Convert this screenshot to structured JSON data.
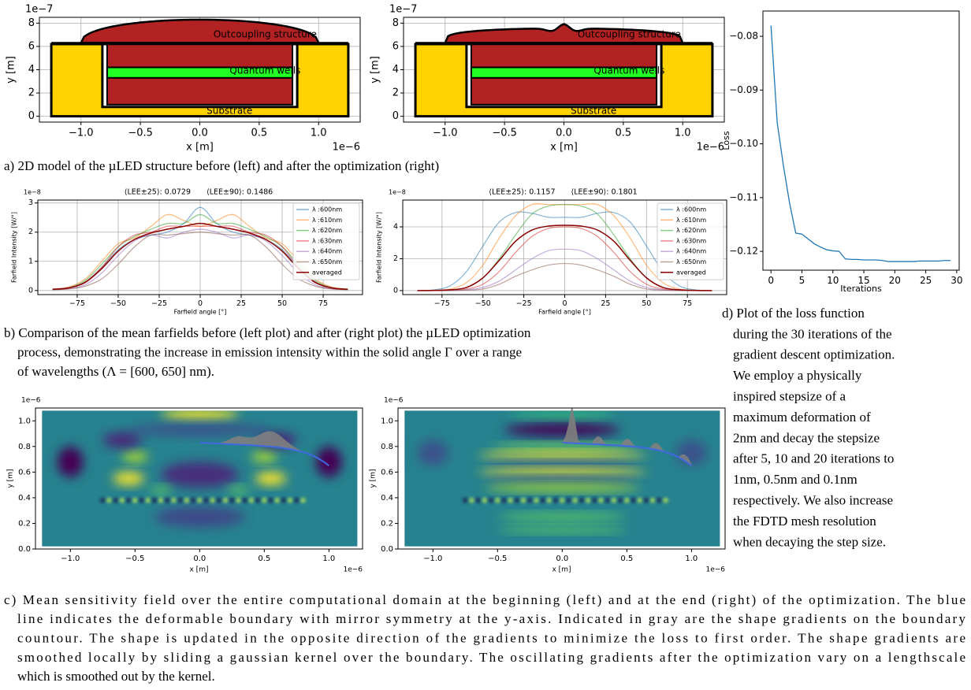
{
  "chart_data": [
    {
      "type": "structure",
      "x_label": "x [m]",
      "y_label": "y [m]",
      "x_offset": "1e−6",
      "y_offset": "1e−7",
      "xlim": [
        -1.35,
        1.35
      ],
      "ylim": [
        -0.5,
        8.5
      ],
      "xticks": [
        {
          "value": -1.0,
          "label": "−1.0"
        },
        {
          "value": -0.5,
          "label": "−0.5"
        },
        {
          "value": 0.0,
          "label": "0.0"
        },
        {
          "value": 0.5,
          "label": "0.5"
        },
        {
          "value": 1.0,
          "label": "1.0"
        }
      ],
      "yticks": [
        0,
        2,
        4,
        6,
        8
      ],
      "grid": true,
      "annotations": [
        "Outcoupling structure",
        "Quantum wells",
        "Substrate"
      ]
    },
    {
      "type": "structure",
      "x_label": "x [m]",
      "y_label": "y [m]",
      "x_offset": "1e−6",
      "y_offset": "1e−7",
      "xlim": [
        -1.35,
        1.35
      ],
      "ylim": [
        -0.5,
        8.5
      ],
      "xticks": [
        {
          "value": -1.0,
          "label": "−1.0"
        },
        {
          "value": -0.5,
          "label": "−0.5"
        },
        {
          "value": 0.0,
          "label": "0.0"
        },
        {
          "value": 0.5,
          "label": "0.5"
        },
        {
          "value": 1.0,
          "label": "1.0"
        }
      ],
      "yticks": [
        0,
        2,
        4,
        6,
        8
      ],
      "grid": true,
      "annotations": [
        "Outcoupling structure",
        "Quantum wells",
        "Substrate"
      ]
    },
    {
      "type": "line",
      "title_left": "⟨LEE±25⟩: 0.0729",
      "title_right": "⟨LEE±90⟩: 0.1486",
      "x_label": "Farfield angle [°]",
      "y_label": "Farfield Intensity [W/°]",
      "y_offset": "1e−8",
      "xlim": [
        -99,
        99
      ],
      "ylim": [
        -0.14,
        3.1
      ],
      "xticks": [
        {
          "value": -75,
          "label": "−75"
        },
        {
          "value": -50,
          "label": "−50"
        },
        {
          "value": -25,
          "label": "−25"
        },
        0,
        25,
        50,
        75
      ],
      "yticks": [
        0,
        1,
        2,
        3
      ],
      "grid": true,
      "legend": "upper right",
      "x": [
        -90,
        -80,
        -70,
        -60,
        -50,
        -40,
        -30,
        -20,
        -10,
        0,
        10,
        20,
        30,
        40,
        50,
        60,
        70,
        80,
        90
      ],
      "series": [
        {
          "name": "λ :600nm",
          "color": "#1f77b4",
          "values": [
            0.05,
            0.1,
            0.3,
            0.8,
            1.4,
            1.75,
            1.9,
            2.0,
            2.3,
            2.85,
            2.3,
            2.0,
            1.9,
            1.75,
            1.4,
            0.8,
            0.3,
            0.1,
            0.05
          ]
        },
        {
          "name": "λ :610nm",
          "color": "#ff7f0e",
          "values": [
            0.05,
            0.12,
            0.4,
            1.0,
            1.6,
            1.8,
            2.2,
            2.6,
            2.4,
            2.2,
            2.4,
            2.6,
            2.2,
            1.8,
            1.6,
            1.0,
            0.4,
            0.12,
            0.05
          ]
        },
        {
          "name": "λ :620nm",
          "color": "#2ca02c",
          "values": [
            0.05,
            0.1,
            0.35,
            0.9,
            1.5,
            1.85,
            2.1,
            2.3,
            2.3,
            2.6,
            2.3,
            2.3,
            2.1,
            1.85,
            1.5,
            0.9,
            0.35,
            0.1,
            0.05
          ]
        },
        {
          "name": "λ :630nm",
          "color": "#d62728",
          "values": [
            0.04,
            0.1,
            0.3,
            0.8,
            1.5,
            1.9,
            2.0,
            2.2,
            2.2,
            2.2,
            2.2,
            2.2,
            2.0,
            1.9,
            1.5,
            0.8,
            0.3,
            0.1,
            0.04
          ]
        },
        {
          "name": "λ :640nm",
          "color": "#9467bd",
          "values": [
            0.03,
            0.06,
            0.2,
            0.6,
            1.2,
            1.7,
            1.9,
            1.8,
            2.0,
            2.1,
            2.0,
            1.8,
            1.9,
            1.7,
            1.2,
            0.6,
            0.2,
            0.06,
            0.03
          ]
        },
        {
          "name": "λ :650nm",
          "color": "#8c564b",
          "values": [
            0.03,
            0.05,
            0.15,
            0.4,
            0.9,
            1.5,
            1.9,
            1.9,
            1.95,
            2.0,
            1.95,
            1.9,
            1.9,
            1.5,
            0.9,
            0.4,
            0.15,
            0.05,
            0.03
          ]
        },
        {
          "name": "averaged",
          "color": "#8b0000",
          "values": [
            0.04,
            0.09,
            0.28,
            0.75,
            1.35,
            1.75,
            1.97,
            2.1,
            2.2,
            2.3,
            2.2,
            2.1,
            1.97,
            1.75,
            1.35,
            0.75,
            0.28,
            0.09,
            0.04
          ]
        }
      ]
    },
    {
      "type": "line",
      "title_left": "⟨LEE±25⟩: 0.1157",
      "title_right": "⟨LEE±90⟩: 0.1801",
      "x_label": "Farfield angle [°]",
      "y_label": "Farfield Intensity [W/°]",
      "y_offset": "1e−8",
      "xlim": [
        -99,
        99
      ],
      "ylim": [
        -0.25,
        5.68
      ],
      "xticks": [
        {
          "value": -75,
          "label": "−75"
        },
        {
          "value": -50,
          "label": "−50"
        },
        {
          "value": -25,
          "label": "−25"
        },
        0,
        25,
        50,
        75
      ],
      "yticks": [
        0,
        2,
        4
      ],
      "grid": true,
      "legend": "upper right",
      "x": [
        -90,
        -80,
        -70,
        -60,
        -50,
        -40,
        -30,
        -20,
        -10,
        0,
        10,
        20,
        30,
        40,
        50,
        60,
        70,
        80,
        90
      ],
      "series": [
        {
          "name": "λ :600nm",
          "color": "#1f77b4",
          "values": [
            0.0,
            0.05,
            0.3,
            1.2,
            2.8,
            4.3,
            4.9,
            4.85,
            4.6,
            4.6,
            4.6,
            4.85,
            4.9,
            4.3,
            2.8,
            1.2,
            0.3,
            0.05,
            0.0
          ]
        },
        {
          "name": "λ :610nm",
          "color": "#ff7f0e",
          "values": [
            0.0,
            0.02,
            0.1,
            0.5,
            1.6,
            3.3,
            4.7,
            5.4,
            5.4,
            5.4,
            5.4,
            5.4,
            4.7,
            3.3,
            1.6,
            0.5,
            0.1,
            0.02,
            0.0
          ]
        },
        {
          "name": "λ :620nm",
          "color": "#2ca02c",
          "values": [
            0.0,
            0.01,
            0.05,
            0.2,
            0.8,
            2.0,
            3.5,
            4.8,
            5.3,
            5.4,
            5.3,
            4.8,
            3.5,
            2.0,
            0.8,
            0.2,
            0.05,
            0.01,
            0.0
          ]
        },
        {
          "name": "λ :630nm",
          "color": "#d62728",
          "values": [
            0.0,
            0.0,
            0.02,
            0.1,
            0.4,
            1.2,
            2.4,
            3.4,
            3.9,
            4.0,
            3.9,
            3.4,
            2.4,
            1.2,
            0.4,
            0.1,
            0.02,
            0.0,
            0.0
          ]
        },
        {
          "name": "λ :640nm",
          "color": "#9467bd",
          "values": [
            0.0,
            0.0,
            0.01,
            0.05,
            0.2,
            0.6,
            1.3,
            2.0,
            2.5,
            2.6,
            2.5,
            2.0,
            1.3,
            0.6,
            0.2,
            0.05,
            0.01,
            0.0,
            0.0
          ]
        },
        {
          "name": "λ :650nm",
          "color": "#8c564b",
          "values": [
            0.0,
            0.0,
            0.01,
            0.03,
            0.1,
            0.4,
            0.9,
            1.3,
            1.6,
            1.7,
            1.6,
            1.3,
            0.9,
            0.4,
            0.1,
            0.03,
            0.01,
            0.0,
            0.0
          ]
        },
        {
          "name": "averaged",
          "color": "#8b0000",
          "values": [
            0.0,
            0.01,
            0.05,
            0.2,
            0.8,
            1.9,
            3.1,
            3.8,
            4.05,
            4.1,
            4.05,
            3.8,
            3.1,
            1.9,
            0.8,
            0.2,
            0.05,
            0.01,
            0.0
          ]
        }
      ]
    },
    {
      "type": "heatmap",
      "x_label": "x [m]",
      "y_label": "y [m]",
      "x_offset": "1e−6",
      "y_offset": "1e−6",
      "xlim": [
        -1.27,
        1.26
      ],
      "ylim": [
        0.0,
        1.1
      ],
      "xticks": [
        {
          "value": -1.0,
          "label": "−1.0"
        },
        {
          "value": -0.5,
          "label": "−0.5"
        },
        {
          "value": 0.0,
          "label": "0.0"
        },
        {
          "value": 0.5,
          "label": "0.5"
        },
        {
          "value": 1.0,
          "label": "1.0"
        }
      ],
      "yticks": [
        {
          "value": 0.0,
          "label": "0.0"
        },
        0.2,
        0.4,
        0.6,
        0.8,
        {
          "value": 1.0,
          "label": "1.0"
        }
      ]
    },
    {
      "type": "heatmap",
      "x_label": "x [m]",
      "y_label": "y [m]",
      "x_offset": "1e−6",
      "y_offset": "1e−6",
      "xlim": [
        -1.27,
        1.26
      ],
      "ylim": [
        0.0,
        1.1
      ],
      "xticks": [
        {
          "value": -1.0,
          "label": "−1.0"
        },
        {
          "value": -0.5,
          "label": "−0.5"
        },
        {
          "value": 0.0,
          "label": "0.0"
        },
        {
          "value": 0.5,
          "label": "0.5"
        },
        {
          "value": 1.0,
          "label": "1.0"
        }
      ],
      "yticks": [
        {
          "value": 0.0,
          "label": "0.0"
        },
        0.2,
        0.4,
        0.6,
        0.8,
        {
          "value": 1.0,
          "label": "1.0"
        }
      ]
    },
    {
      "type": "loss",
      "x_label": "Iterations",
      "y_label": "Loss",
      "color": "#1f77b4",
      "xlim": [
        -1.3,
        30.4
      ],
      "ylim": [
        -0.1235,
        -0.0753
      ],
      "xticks": [
        0,
        5,
        10,
        15,
        20,
        25,
        30
      ],
      "yticks": [
        {
          "value": -0.08,
          "label": "−0.08"
        },
        {
          "value": -0.09,
          "label": "−0.09"
        },
        {
          "value": -0.1,
          "label": "−0.10"
        },
        {
          "value": -0.11,
          "label": "−0.11"
        },
        {
          "value": -0.12,
          "label": "−0.12"
        }
      ],
      "x": [
        0,
        1,
        2,
        3,
        4,
        5,
        6,
        7,
        8,
        9,
        10,
        11,
        12,
        13,
        14,
        15,
        16,
        17,
        18,
        19,
        20,
        21,
        22,
        23,
        24,
        25,
        26,
        27,
        28,
        29
      ],
      "values": [
        -0.078,
        -0.096,
        -0.104,
        -0.111,
        -0.1166,
        -0.1168,
        -0.1177,
        -0.1186,
        -0.1192,
        -0.1197,
        -0.1199,
        -0.12,
        -0.1214,
        -0.1215,
        -0.1215,
        -0.1216,
        -0.1216,
        -0.1216,
        -0.1217,
        -0.1219,
        -0.1219,
        -0.1219,
        -0.1219,
        -0.1219,
        -0.1218,
        -0.1218,
        -0.1218,
        -0.1218,
        -0.1217,
        -0.1217
      ]
    }
  ],
  "captions": {
    "a": [
      "a) 2D model of the µLED structure before (left) and after the optimization (right)"
    ],
    "b": [
      "b) Comparison of the mean farfields before (left plot) and after (right plot) the µLED optimization",
      "process, demonstrating the increase in emission intensity within the solid angle Γ over a range",
      "of wavelengths (Λ = [600, 650] nm)."
    ],
    "c": [
      "c) Mean sensitivity field over the entire computational domain at the beginning (left) and at the end (right) of the optimization. The blue",
      "line indicates the deformable boundary with mirror symmetry at the y-axis. Indicated in gray are the shape gradients on the boundary",
      "countour. The shape is updated in the opposite direction of the gradients to minimize the loss to first order. The shape gradients are",
      "smoothed locally by sliding a gaussian kernel over the boundary. The oscillating gradients after the optimization vary on a lengthscale",
      "which is smoothed out by the kernel."
    ],
    "d": [
      "d) Plot of the loss function",
      "during the 30 iterations of the",
      "gradient descent optimization.",
      "We employ a physically",
      "inspired stepsize of a",
      "maximum deformation of",
      "2nm and decay the stepsize",
      "after 5, 10 and 20 iterations to",
      "1nm, 0.5nm and 0.1nm",
      "respectively. We also increase",
      "the FDTD mesh resolution",
      "when decaying the step size."
    ]
  }
}
